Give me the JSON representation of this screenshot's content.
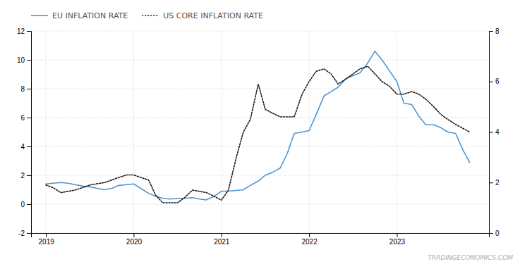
{
  "chart_data": {
    "type": "line",
    "x": [
      2019.0,
      2019.08,
      2019.17,
      2019.25,
      2019.33,
      2019.42,
      2019.5,
      2019.58,
      2019.67,
      2019.75,
      2019.83,
      2019.92,
      2020.0,
      2020.08,
      2020.17,
      2020.25,
      2020.33,
      2020.42,
      2020.5,
      2020.58,
      2020.67,
      2020.75,
      2020.83,
      2020.92,
      2021.0,
      2021.08,
      2021.17,
      2021.25,
      2021.33,
      2021.42,
      2021.5,
      2021.58,
      2021.67,
      2021.75,
      2021.83,
      2021.92,
      2022.0,
      2022.08,
      2022.17,
      2022.25,
      2022.33,
      2022.42,
      2022.5,
      2022.58,
      2022.67,
      2022.75,
      2022.83,
      2022.92,
      2023.0,
      2023.08,
      2023.17,
      2023.25,
      2023.33,
      2023.42,
      2023.5,
      2023.58,
      2023.67,
      2023.75,
      2023.83
    ],
    "series": [
      {
        "name": "EU INFLATION RATE",
        "color": "#4d96d2",
        "line_style": "solid",
        "values": [
          1.4,
          1.45,
          1.5,
          1.45,
          1.35,
          1.25,
          1.2,
          1.1,
          1.0,
          1.1,
          1.3,
          1.35,
          1.4,
          1.1,
          0.75,
          0.55,
          0.4,
          0.35,
          0.4,
          0.4,
          0.45,
          0.35,
          0.3,
          0.55,
          0.9,
          0.9,
          0.95,
          1.0,
          1.3,
          1.6,
          2.0,
          2.2,
          2.5,
          3.5,
          4.9,
          5.0,
          5.1,
          6.2,
          7.5,
          7.8,
          8.1,
          8.7,
          8.9,
          9.1,
          9.8,
          10.6,
          10.0,
          9.2,
          8.5,
          7.0,
          6.9,
          6.1,
          5.5,
          5.5,
          5.3,
          5.0,
          4.9,
          3.8,
          2.9
        ]
      },
      {
        "name": "US CORE INFLATION RATE",
        "color": "#1a1a1a",
        "line_style": "dotted",
        "axis": "y2",
        "values": [
          1.9,
          1.8,
          1.6,
          1.65,
          1.7,
          1.8,
          1.9,
          1.95,
          2.0,
          2.1,
          2.2,
          2.3,
          2.3,
          2.2,
          2.1,
          1.5,
          1.2,
          1.2,
          1.2,
          1.4,
          1.7,
          1.65,
          1.6,
          1.45,
          1.3,
          1.7,
          3.0,
          4.0,
          4.5,
          5.9,
          4.9,
          4.75,
          4.6,
          4.6,
          4.6,
          5.5,
          6.0,
          6.4,
          6.5,
          6.3,
          5.9,
          6.1,
          6.3,
          6.5,
          6.6,
          6.3,
          6.0,
          5.8,
          5.5,
          5.5,
          5.6,
          5.5,
          5.3,
          5.0,
          4.7,
          4.5,
          4.3,
          4.15,
          4.0
        ]
      }
    ],
    "xlim": [
      2018.83,
      2024.05
    ],
    "xticks": [
      2019,
      2020,
      2021,
      2022,
      2023
    ],
    "ylim": [
      -2,
      12
    ],
    "yticks": [
      -2,
      0,
      2,
      4,
      6,
      8,
      10,
      12
    ],
    "y2lim": [
      0,
      8
    ],
    "y2ticks": [
      0,
      2,
      4,
      6,
      8
    ],
    "grid": true,
    "legend": "upper left",
    "annotations": [
      "TRADINGECONOMICS.COM"
    ]
  }
}
